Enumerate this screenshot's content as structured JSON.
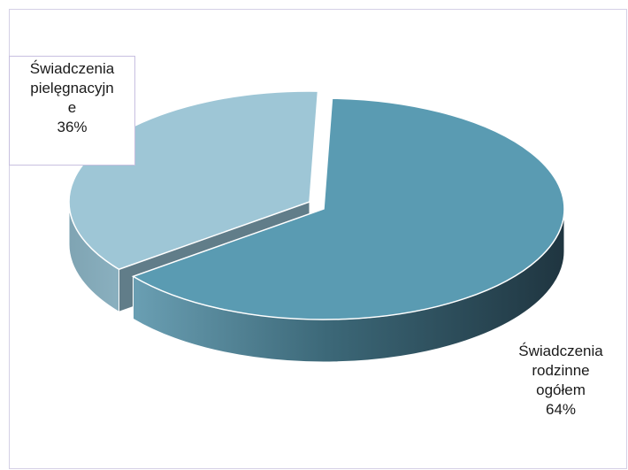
{
  "chart_data": {
    "type": "pie",
    "style": "3d-exploded",
    "title": "",
    "slices": [
      {
        "label_lines": [
          "Świadczenia",
          "rodzinne",
          "ogółem"
        ],
        "value": 64,
        "value_label": "64%",
        "color": "#5a9bb2",
        "dark_color": "#233c47"
      },
      {
        "label_lines": [
          "Świadczenia",
          "pielęgnacyjn",
          "e"
        ],
        "value": 36,
        "value_label": "36%",
        "color": "#9ec6d6",
        "dark_color": "#617d89"
      }
    ],
    "legend": "none"
  }
}
